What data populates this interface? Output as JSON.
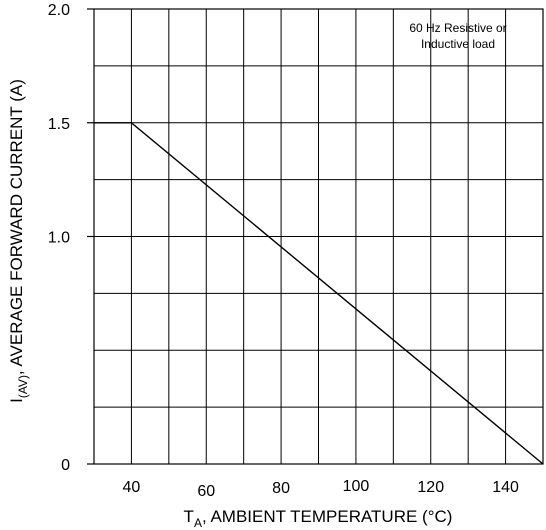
{
  "chart_data": {
    "type": "line",
    "title": "",
    "annotation_lines": [
      "60 Hz Resistive or",
      "Inductive load"
    ],
    "xlabel": {
      "main": "T",
      "sub": "A",
      "rest": ", AMBIENT  TEMPERATURE (°C)"
    },
    "ylabel": {
      "main": "I",
      "sub": "(AV)",
      "rest": ", AVERAGE FORWARD CURRENT (A)"
    },
    "xlim": [
      30,
      150
    ],
    "ylim": [
      0,
      2.0
    ],
    "x_ticks": [
      {
        "value": 40,
        "label": "40"
      },
      {
        "value": 60,
        "label": "60"
      },
      {
        "value": 80,
        "label": "80"
      },
      {
        "value": 100,
        "label": "100"
      },
      {
        "value": 120,
        "label": "120"
      },
      {
        "value": 140,
        "label": "140"
      }
    ],
    "y_ticks": [
      {
        "value": 0,
        "label": "0"
      },
      {
        "value": 1.0,
        "label": "1.0"
      },
      {
        "value": 1.5,
        "label": "1.5"
      },
      {
        "value": 2.0,
        "label": "2.0"
      }
    ],
    "grid": true,
    "x_grid_step": 10,
    "y_grid_step": 0.25,
    "series": [
      {
        "x": [
          30,
          40,
          150
        ],
        "y": [
          1.5,
          1.5,
          0
        ],
        "color": "#000000"
      }
    ]
  }
}
